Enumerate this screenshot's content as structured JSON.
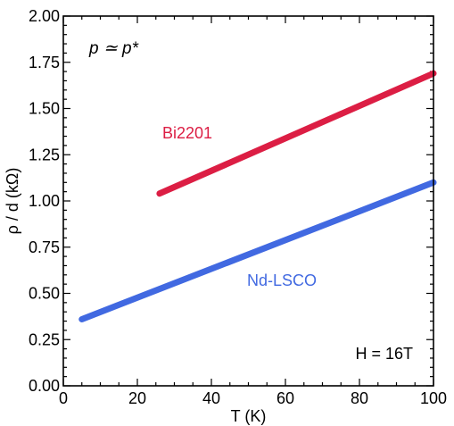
{
  "chart_data": {
    "type": "line",
    "title": "",
    "xlabel": "T (K)",
    "ylabel": "ρ / d (kΩ)",
    "xlim": [
      0,
      100
    ],
    "ylim": [
      0,
      2.0
    ],
    "x_ticks": [
      "0",
      "20",
      "40",
      "60",
      "80",
      "100"
    ],
    "y_ticks": [
      "0.00",
      "0.25",
      "0.50",
      "0.75",
      "1.00",
      "1.25",
      "1.50",
      "1.75",
      "2.00"
    ],
    "grid": false,
    "series": [
      {
        "name": "Bi2201",
        "color": "#dc1e44",
        "x": [
          26,
          100
        ],
        "y": [
          1.04,
          1.69
        ]
      },
      {
        "name": "Nd-LSCO",
        "color": "#4169e1",
        "x": [
          5,
          100
        ],
        "y": [
          0.36,
          1.1
        ]
      }
    ],
    "annotations": {
      "doping": "p  ≃  p*",
      "field": "H = 16T"
    }
  }
}
